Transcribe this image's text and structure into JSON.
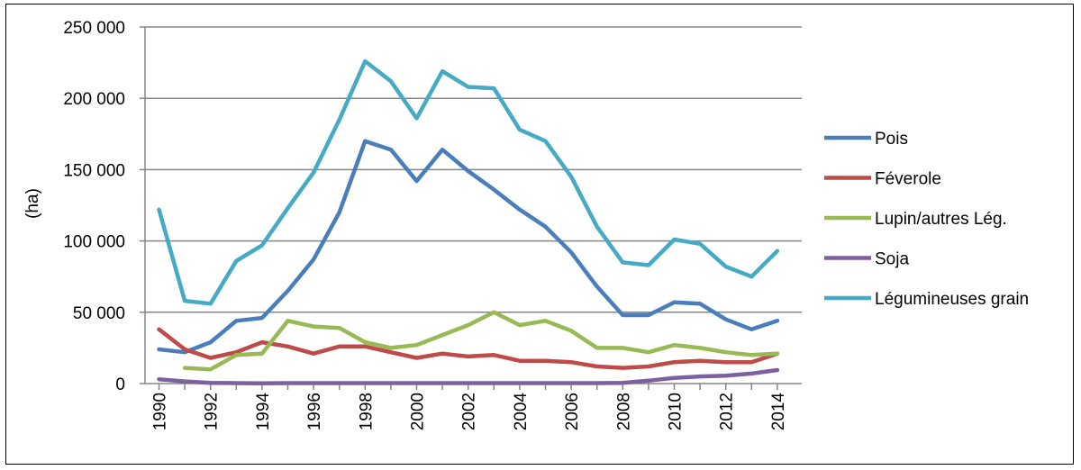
{
  "chart_data": {
    "type": "line",
    "title": "",
    "xlabel": "",
    "ylabel": "(ha)",
    "x": [
      1990,
      1991,
      1992,
      1993,
      1994,
      1995,
      1996,
      1997,
      1998,
      1999,
      2000,
      2001,
      2002,
      2003,
      2004,
      2005,
      2006,
      2007,
      2008,
      2009,
      2010,
      2011,
      2012,
      2013,
      2014
    ],
    "x_tick_labels": [
      "1990",
      "1992",
      "1994",
      "1996",
      "1998",
      "2000",
      "2002",
      "2004",
      "2006",
      "2008",
      "2010",
      "2012",
      "2014"
    ],
    "y_tick_labels": [
      "0",
      "50 000",
      "100 000",
      "150 000",
      "200 000",
      "250 000"
    ],
    "ylim": [
      0,
      250000
    ],
    "grid": true,
    "legend_position": "right",
    "series": [
      {
        "name": "Pois",
        "color": "#4a7ebb",
        "values": [
          24000,
          22000,
          29000,
          44000,
          46000,
          65000,
          87000,
          120000,
          170000,
          164000,
          142000,
          164000,
          149000,
          136000,
          122000,
          110000,
          92000,
          68000,
          48000,
          48000,
          57000,
          56000,
          45000,
          38000,
          44000
        ]
      },
      {
        "name": "Féverole",
        "color": "#be4b48",
        "values": [
          38000,
          24000,
          18000,
          22000,
          29000,
          26000,
          21000,
          26000,
          26000,
          22000,
          18000,
          21000,
          19000,
          20000,
          16000,
          16000,
          15000,
          12000,
          11000,
          12000,
          15000,
          16000,
          15000,
          15000,
          21000
        ]
      },
      {
        "name": "Lupin/autres Lég.",
        "color": "#98b954",
        "values": [
          null,
          11000,
          10000,
          20000,
          21000,
          44000,
          40000,
          39000,
          29000,
          25000,
          27000,
          34000,
          41000,
          50000,
          41000,
          44000,
          37000,
          25000,
          25000,
          22000,
          27000,
          25000,
          22000,
          20000,
          21000
        ]
      },
      {
        "name": "Soja",
        "color": "#7d60a0",
        "values": [
          3000,
          1500,
          500,
          300,
          200,
          300,
          300,
          300,
          300,
          300,
          300,
          300,
          300,
          300,
          300,
          300,
          300,
          300,
          500,
          2000,
          4000,
          5000,
          5500,
          7000,
          9500
        ]
      },
      {
        "name": "Légumineuses grain",
        "color": "#46aac5",
        "values": [
          122000,
          58000,
          56000,
          86000,
          97000,
          123000,
          148000,
          185000,
          226000,
          212000,
          186000,
          219000,
          208000,
          207000,
          178000,
          170000,
          145000,
          110000,
          85000,
          83000,
          101000,
          98000,
          82000,
          75000,
          93000
        ]
      }
    ]
  }
}
